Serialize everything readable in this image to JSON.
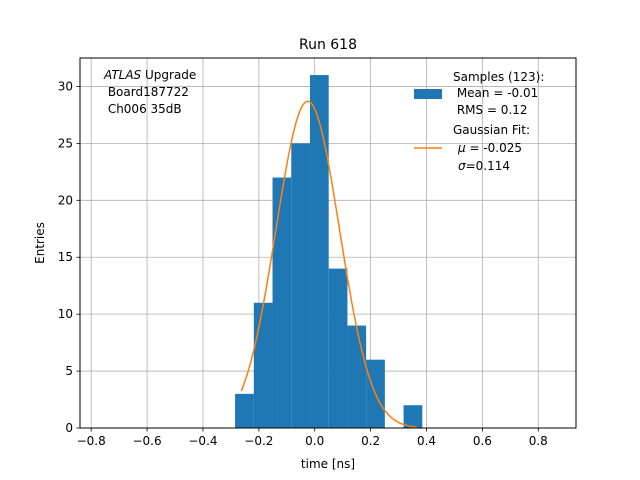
{
  "chart_data": {
    "type": "bar",
    "title": "Run 618",
    "xlabel": "time [ns]",
    "ylabel": "Entries",
    "xlim": [
      -0.84,
      0.935
    ],
    "ylim": [
      0,
      32.5
    ],
    "grid": true,
    "xticks": [
      -0.8,
      -0.6,
      -0.4,
      -0.2,
      0.0,
      0.2,
      0.4,
      0.6,
      0.8
    ],
    "xtick_labels": [
      "−0.8",
      "−0.6",
      "−0.4",
      "−0.2",
      "0.0",
      "0.2",
      "0.4",
      "0.6",
      "0.8"
    ],
    "yticks": [
      0,
      5,
      10,
      15,
      20,
      25,
      30
    ],
    "ytick_labels": [
      "0",
      "5",
      "10",
      "15",
      "20",
      "25",
      "30"
    ],
    "histogram": {
      "bin_edges": [
        -0.285,
        -0.218,
        -0.151,
        -0.084,
        -0.017,
        0.05,
        0.117,
        0.184,
        0.251,
        0.318,
        0.385
      ],
      "counts": [
        3,
        11,
        22,
        25,
        31,
        14,
        9,
        6,
        0,
        2
      ]
    },
    "gaussian_fit": {
      "amplitude": 28.7,
      "mu": -0.025,
      "sigma": 0.114,
      "x_range": [
        -0.263,
        0.365
      ]
    },
    "colors": {
      "bars": "#1f77b4",
      "fit": "#ff7f0e",
      "grid": "#b0b0b0"
    },
    "annotation": {
      "italic": "ATLAS",
      "line1_rest": " Upgrade",
      "line2": " Board187722",
      "line3": " Ch006 35dB"
    },
    "legend": {
      "position": "top-right",
      "samples_title": "Samples (123):",
      "samples_mean": " Mean = -0.01",
      "samples_rms": " RMS = 0.12",
      "fit_title": "Gaussian Fit:",
      "fit_mu_symbol": "μ",
      "fit_mu_rest": " = -0.025",
      "fit_sigma_symbol": "σ",
      "fit_sigma_rest": "=0.114"
    }
  }
}
